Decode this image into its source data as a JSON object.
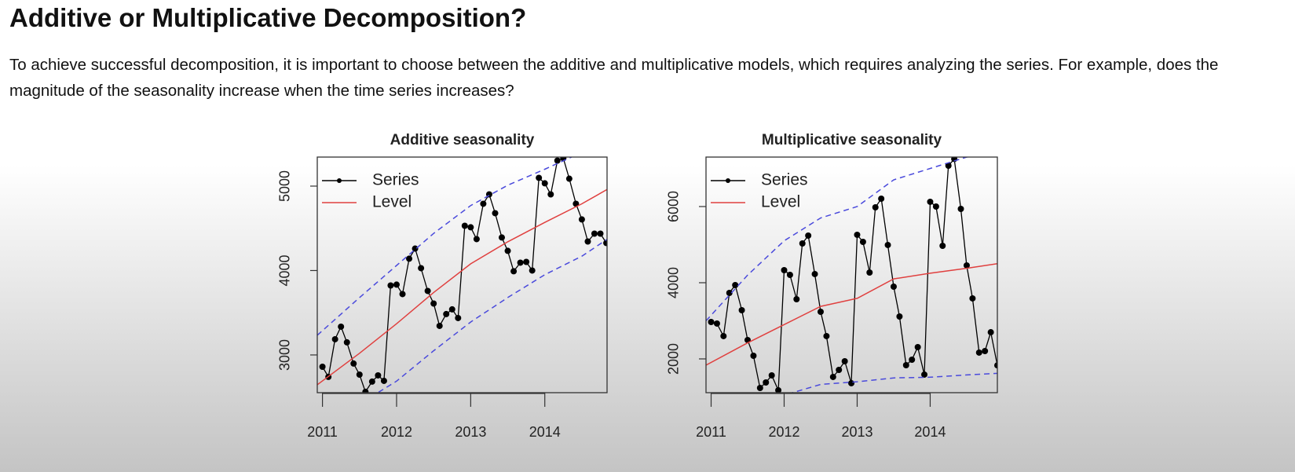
{
  "header": {
    "title": "Additive or Multiplicative Decomposition?"
  },
  "paragraph": "To achieve successful decomposition, it is important to choose between the additive and multiplicative models, which requires analyzing the series. For example, does the magnitude of the seasonality increase when the time series increases?",
  "chart_data": [
    {
      "type": "line",
      "title": "Additive seasonality",
      "legend": "top left",
      "xlim": [
        2010.93,
        2014.84
      ],
      "xticks": [
        2011,
        2012,
        2013,
        2014
      ],
      "ylim": [
        2553,
        5344
      ],
      "yticks": [
        3000,
        4000,
        5000
      ],
      "series": [
        {
          "name": "Series",
          "color": "#000000",
          "markers": true,
          "x": [
            2011.0,
            2011.08,
            2011.17,
            2011.25,
            2011.33,
            2011.42,
            2011.5,
            2011.58,
            2011.67,
            2011.75,
            2011.83,
            2011.92,
            2012.0,
            2012.08,
            2012.17,
            2012.25,
            2012.33,
            2012.42,
            2012.5,
            2012.58,
            2012.67,
            2012.75,
            2012.83,
            2012.92,
            2013.0,
            2013.08,
            2013.17,
            2013.25,
            2013.33,
            2013.42,
            2013.5,
            2013.58,
            2013.67,
            2013.75,
            2013.83,
            2013.92,
            2014.0,
            2014.08,
            2014.17,
            2014.25,
            2014.33,
            2014.42,
            2014.5,
            2014.58,
            2014.67,
            2014.75,
            2014.83
          ],
          "values": [
            2860,
            2740,
            3186,
            3335,
            3149,
            2898,
            2767,
            2563,
            2684,
            2758,
            2693,
            3823,
            3833,
            3721,
            4140,
            4260,
            4028,
            3758,
            3609,
            3344,
            3484,
            3540,
            3437,
            4530,
            4512,
            4372,
            4791,
            4902,
            4679,
            4391,
            4233,
            3991,
            4093,
            4102,
            4000,
            5098,
            5033,
            4902,
            5302,
            5330,
            5088,
            4791,
            4605,
            4344,
            4437,
            4437,
            4326
          ]
        },
        {
          "name": "Level",
          "color": "#e0403f",
          "x": [
            2010.93,
            2011.5,
            2012,
            2012.5,
            2013,
            2013.5,
            2014,
            2014.5,
            2014.84
          ],
          "values": [
            2647,
            3020,
            3370,
            3740,
            4080,
            4340,
            4570,
            4790,
            4960
          ]
        },
        {
          "color": "#4a4adc",
          "dashed": true,
          "x": [
            2010.93,
            2011.5,
            2012,
            2012.5,
            2013,
            2013.5,
            2014,
            2014.5,
            2014.84
          ],
          "values": [
            3233,
            3680,
            4060,
            4440,
            4770,
            5010,
            5200,
            5400,
            5560
          ]
        },
        {
          "color": "#4a4adc",
          "dashed": true,
          "x": [
            2010.93,
            2011.5,
            2012,
            2012.5,
            2013,
            2013.5,
            2014,
            2014.5,
            2014.84
          ],
          "values": [
            2040,
            2420,
            2690,
            3050,
            3390,
            3680,
            3950,
            4170,
            4370
          ]
        }
      ]
    },
    {
      "type": "line",
      "title": "Multiplicative seasonality",
      "legend": "top left",
      "xlim": [
        2010.93,
        2014.92
      ],
      "xticks": [
        2011,
        2012,
        2013,
        2014
      ],
      "ylim": [
        1113,
        7299
      ],
      "yticks": [
        2000,
        4000,
        6000
      ],
      "series": [
        {
          "name": "Series",
          "color": "#000000",
          "markers": true,
          "x": [
            2011.0,
            2011.08,
            2011.17,
            2011.25,
            2011.33,
            2011.42,
            2011.5,
            2011.58,
            2011.67,
            2011.75,
            2011.83,
            2011.92,
            2012.0,
            2012.08,
            2012.17,
            2012.25,
            2012.33,
            2012.42,
            2012.5,
            2012.58,
            2012.67,
            2012.75,
            2012.83,
            2012.92,
            2013.0,
            2013.08,
            2013.17,
            2013.25,
            2013.33,
            2013.42,
            2013.5,
            2013.58,
            2013.67,
            2013.75,
            2013.83,
            2013.92,
            2014.0,
            2014.08,
            2014.17,
            2014.25,
            2014.33,
            2014.42,
            2014.5,
            2014.58,
            2014.67,
            2014.75,
            2014.83,
            2014.92
          ],
          "values": [
            2969,
            2928,
            2598,
            3732,
            3938,
            3278,
            2495,
            2082,
            1237,
            1381,
            1567,
            1175,
            4330,
            4206,
            3567,
            5031,
            5237,
            4227,
            3237,
            2598,
            1526,
            1711,
            1938,
            1361,
            5258,
            5072,
            4268,
            5979,
            6206,
            4990,
            3897,
            3113,
            1835,
            1979,
            2309,
            1588,
            6124,
            6000,
            4969,
            7072,
            7250,
            5938,
            4454,
            3588,
            2165,
            2206,
            2700,
            1830
          ]
        },
        {
          "name": "Level",
          "color": "#e0403f",
          "x": [
            2010.93,
            2011.5,
            2012,
            2012.5,
            2013,
            2013.5,
            2014,
            2014.5,
            2014.92
          ],
          "values": [
            1835,
            2420,
            2900,
            3380,
            3590,
            4100,
            4250,
            4380,
            4500
          ]
        },
        {
          "color": "#4a4adc",
          "dashed": true,
          "x": [
            2010.93,
            2011.5,
            2012,
            2012.5,
            2013,
            2013.5,
            2014,
            2014.5,
            2014.92
          ],
          "values": [
            3000,
            4200,
            5100,
            5700,
            6000,
            6700,
            7000,
            7300,
            7400
          ]
        },
        {
          "color": "#4a4adc",
          "dashed": true,
          "x": [
            2010.93,
            2011.5,
            2012,
            2012.5,
            2013,
            2013.5,
            2014,
            2014.5,
            2014.92
          ],
          "values": [
            500,
            800,
            1050,
            1330,
            1400,
            1500,
            1520,
            1580,
            1620
          ]
        }
      ]
    }
  ]
}
